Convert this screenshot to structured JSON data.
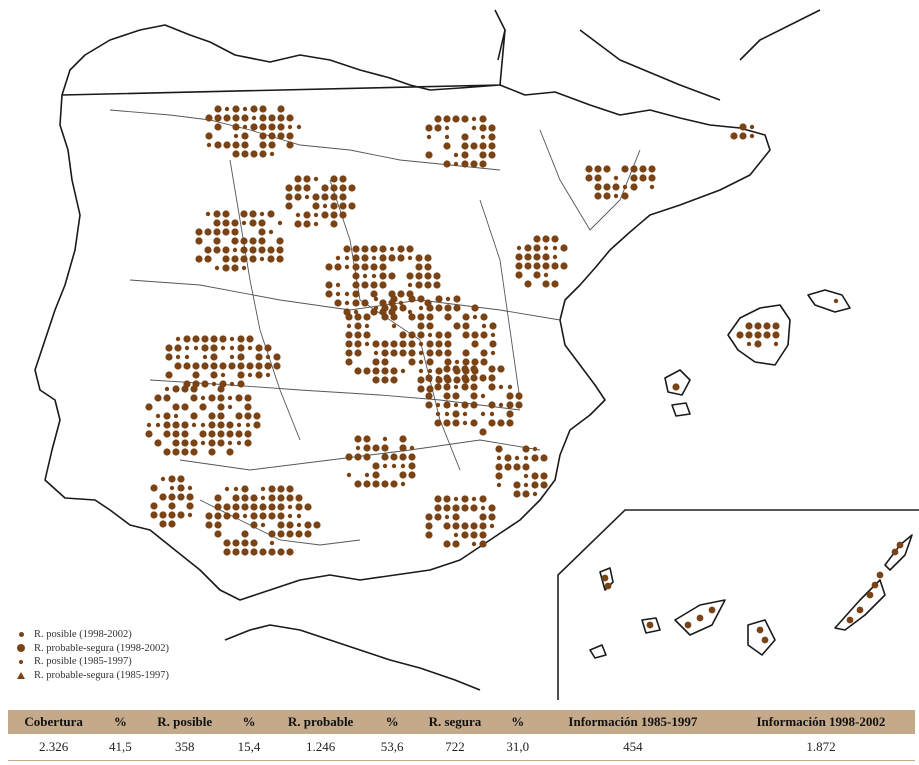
{
  "legend": {
    "items": [
      {
        "label": "R. posible (1998-2002)",
        "symbol": "small-dot"
      },
      {
        "label": "R. probable-segura (1998-2002)",
        "symbol": "large-dot"
      },
      {
        "label": "R. posible (1985-1997)",
        "symbol": "small-dot-old"
      },
      {
        "label": "R. probable-segura (1985-1997)",
        "symbol": "pentagon"
      }
    ]
  },
  "map": {
    "dot_color": "#7a4316",
    "inset": "canary-islands"
  },
  "table": {
    "headers": [
      "Cobertura",
      "%",
      "R. posible",
      "%",
      "R. probable",
      "%",
      "R. segura",
      "%",
      "Información 1985-1997",
      "Información 1998-2002"
    ],
    "values": [
      "2.326",
      "41,5",
      "358",
      "15,4",
      "1.246",
      "53,6",
      "722",
      "31,0",
      "454",
      "1.872"
    ],
    "header_color": "#c4a98a"
  }
}
